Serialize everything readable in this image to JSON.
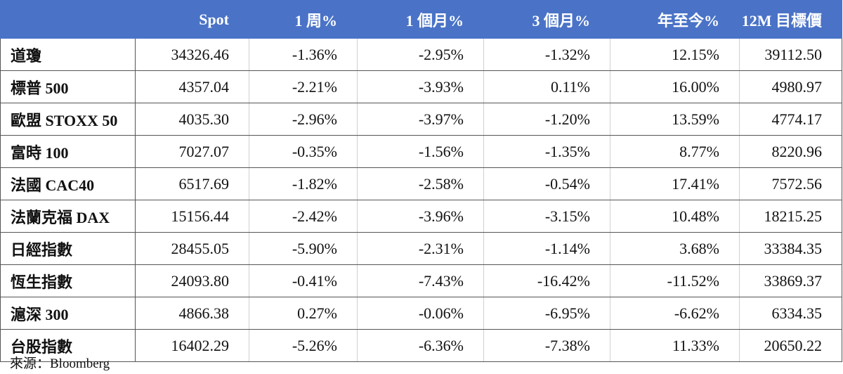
{
  "table": {
    "headers": [
      "",
      "Spot",
      "1 周%",
      "1 個月%",
      "3 個月%",
      "年至今%",
      "12M 目標價"
    ],
    "rows": [
      [
        "道瓊",
        "34326.46",
        "-1.36%",
        "-2.95%",
        "-1.32%",
        "12.15%",
        "39112.50"
      ],
      [
        "標普 500",
        "4357.04",
        "-2.21%",
        "-3.93%",
        "0.11%",
        "16.00%",
        "4980.97"
      ],
      [
        "歐盟 STOXX 50",
        "4035.30",
        "-2.96%",
        "-3.97%",
        "-1.20%",
        "13.59%",
        "4774.17"
      ],
      [
        "富時 100",
        "7027.07",
        "-0.35%",
        "-1.56%",
        "-1.35%",
        "8.77%",
        "8220.96"
      ],
      [
        "法國 CAC40",
        "6517.69",
        "-1.82%",
        "-2.58%",
        "-0.54%",
        "17.41%",
        "7572.56"
      ],
      [
        "法蘭克福 DAX",
        "15156.44",
        "-2.42%",
        "-3.96%",
        "-3.15%",
        "10.48%",
        "18215.25"
      ],
      [
        "日經指數",
        "28455.05",
        "-5.90%",
        "-2.31%",
        "-1.14%",
        "3.68%",
        "33384.35"
      ],
      [
        "恆生指數",
        "24093.80",
        "-0.41%",
        "-7.43%",
        "-16.42%",
        "-11.52%",
        "33869.37"
      ],
      [
        "滬深 300",
        "4866.38",
        "0.27%",
        "-0.06%",
        "-6.95%",
        "-6.62%",
        "6334.35"
      ],
      [
        "台股指數",
        "16402.29",
        "-5.26%",
        "-6.36%",
        "-7.38%",
        "11.33%",
        "20650.22"
      ]
    ]
  },
  "source": "來源：Bloomberg",
  "colors": {
    "header_bg": "#4a73c7",
    "header_text": "#ffffff",
    "grid": "#555555"
  }
}
